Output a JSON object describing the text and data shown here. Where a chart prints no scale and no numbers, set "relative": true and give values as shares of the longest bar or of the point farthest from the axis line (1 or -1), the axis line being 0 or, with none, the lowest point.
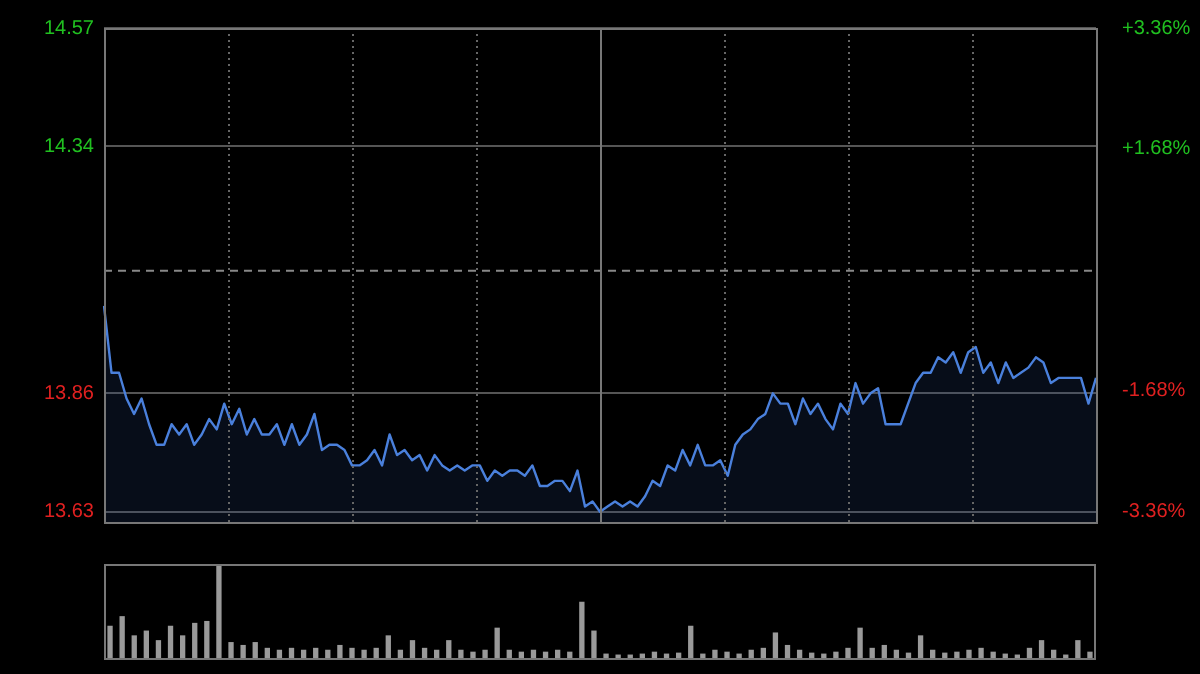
{
  "chart_data": [
    {
      "type": "area",
      "categories": [
        null,
        null,
        null,
        null,
        null,
        null,
        null,
        null,
        null,
        null,
        null,
        null,
        null,
        null,
        null,
        null,
        null,
        null,
        null,
        null,
        null,
        null,
        null,
        null,
        null,
        null,
        null,
        null,
        null,
        null,
        null,
        null,
        null,
        null,
        null,
        null,
        null,
        null,
        null,
        null,
        null,
        null,
        null,
        null,
        null,
        null,
        null,
        null,
        null,
        null,
        null,
        null,
        null,
        null,
        null,
        null,
        null,
        null,
        null,
        null,
        null,
        null,
        null,
        null,
        null,
        null,
        null,
        null,
        null,
        null,
        null,
        null,
        null,
        null,
        null,
        null,
        null,
        null,
        null,
        null,
        null,
        null,
        null,
        null,
        null,
        null,
        null,
        null,
        null,
        null,
        null,
        null,
        null,
        null,
        null,
        null,
        null,
        null,
        null,
        null,
        null,
        null,
        null,
        null,
        null,
        null,
        null,
        null,
        null,
        null,
        null,
        null,
        null,
        null,
        null,
        null,
        null,
        null,
        null,
        null,
        null,
        null,
        null,
        null,
        null,
        null,
        null,
        null,
        null,
        null,
        null,
        null,
        null
      ],
      "series": [
        {
          "color": "#4a80dc",
          "values": [
            14.03,
            13.9,
            13.9,
            13.85,
            13.82,
            13.85,
            13.8,
            13.76,
            13.76,
            13.8,
            13.78,
            13.8,
            13.76,
            13.78,
            13.81,
            13.79,
            13.84,
            13.8,
            13.83,
            13.78,
            13.81,
            13.78,
            13.78,
            13.8,
            13.76,
            13.8,
            13.76,
            13.78,
            13.82,
            13.75,
            13.76,
            13.76,
            13.75,
            13.72,
            13.72,
            13.73,
            13.75,
            13.72,
            13.78,
            13.74,
            13.75,
            13.73,
            13.74,
            13.71,
            13.74,
            13.72,
            13.71,
            13.72,
            13.71,
            13.72,
            13.72,
            13.69,
            13.71,
            13.7,
            13.71,
            13.71,
            13.7,
            13.72,
            13.68,
            13.68,
            13.69,
            13.69,
            13.67,
            13.71,
            13.64,
            13.65,
            13.63,
            13.64,
            13.65,
            13.64,
            13.65,
            13.64,
            13.66,
            13.69,
            13.68,
            13.72,
            13.71,
            13.75,
            13.72,
            13.76,
            13.72,
            13.72,
            13.73,
            13.7,
            13.76,
            13.78,
            13.79,
            13.81,
            13.82,
            13.86,
            13.84,
            13.84,
            13.8,
            13.85,
            13.82,
            13.84,
            13.81,
            13.79,
            13.84,
            13.82,
            13.88,
            13.84,
            13.86,
            13.87,
            13.8,
            13.8,
            13.8,
            13.84,
            13.88,
            13.9,
            13.9,
            13.93,
            13.92,
            13.94,
            13.9,
            13.94,
            13.95,
            13.9,
            13.92,
            13.88,
            13.92,
            13.89,
            13.9,
            13.91,
            13.93,
            13.92,
            13.88,
            13.89,
            13.89,
            13.89,
            13.89,
            13.84,
            13.89
          ]
        }
      ],
      "ylim": [
        13.61,
        14.57
      ],
      "yticks": [
        13.63,
        13.86,
        14.34,
        14.57
      ],
      "y2lim": [
        -3.5,
        3.36
      ],
      "y2ticks": [
        {
          "value": -3.36,
          "label": "-3.36%"
        },
        {
          "value": -1.68,
          "label": "-1.68%"
        },
        {
          "value": 1.68,
          "label": "+1.68%"
        },
        {
          "value": 3.36,
          "label": "+3.36%"
        }
      ],
      "ref_lines": [
        {
          "axis": "y",
          "value": 14.1,
          "line_style": "dashed"
        }
      ],
      "grid": true,
      "marker": "none",
      "legend": false
    },
    {
      "type": "bar",
      "relative": true,
      "categories": [
        null,
        null,
        null,
        null,
        null,
        null,
        null,
        null,
        null,
        null,
        null,
        null,
        null,
        null,
        null,
        null,
        null,
        null,
        null,
        null,
        null,
        null,
        null,
        null,
        null,
        null,
        null,
        null,
        null,
        null,
        null,
        null,
        null,
        null,
        null,
        null,
        null,
        null,
        null,
        null,
        null,
        null,
        null,
        null,
        null,
        null,
        null,
        null,
        null,
        null,
        null,
        null,
        null,
        null,
        null,
        null,
        null,
        null,
        null,
        null,
        null,
        null,
        null,
        null,
        null,
        null,
        null,
        null,
        null,
        null,
        null,
        null,
        null,
        null,
        null,
        null,
        null,
        null,
        null,
        null,
        null,
        null
      ],
      "values": [
        0.35,
        0.45,
        0.25,
        0.3,
        0.2,
        0.35,
        0.25,
        0.38,
        0.4,
        1.0,
        0.18,
        0.15,
        0.18,
        0.12,
        0.1,
        0.12,
        0.1,
        0.12,
        0.1,
        0.15,
        0.12,
        0.1,
        0.12,
        0.25,
        0.1,
        0.2,
        0.12,
        0.1,
        0.2,
        0.1,
        0.08,
        0.1,
        0.33,
        0.1,
        0.08,
        0.1,
        0.08,
        0.1,
        0.08,
        0.6,
        0.3,
        0.06,
        0.05,
        0.05,
        0.06,
        0.08,
        0.06,
        0.07,
        0.35,
        0.06,
        0.1,
        0.08,
        0.06,
        0.1,
        0.12,
        0.28,
        0.15,
        0.1,
        0.07,
        0.06,
        0.08,
        0.12,
        0.33,
        0.12,
        0.15,
        0.1,
        0.07,
        0.25,
        0.1,
        0.07,
        0.08,
        0.1,
        0.12,
        0.08,
        0.06,
        0.05,
        0.12,
        0.2,
        0.1,
        0.05,
        0.2,
        0.08
      ],
      "color": "#9a9a9a",
      "legend": false
    }
  ]
}
